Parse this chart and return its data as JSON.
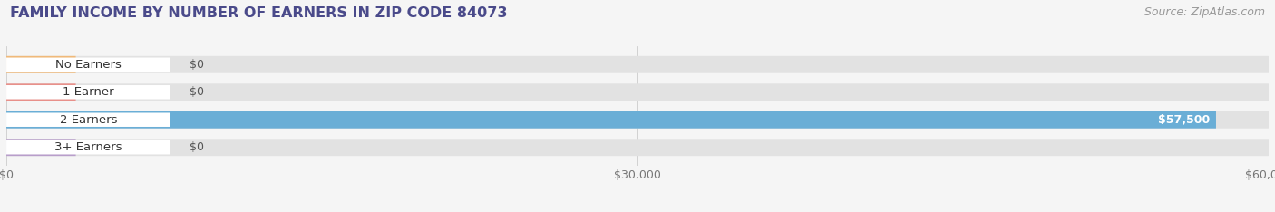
{
  "title": "FAMILY INCOME BY NUMBER OF EARNERS IN ZIP CODE 84073",
  "source": "Source: ZipAtlas.com",
  "categories": [
    "No Earners",
    "1 Earner",
    "2 Earners",
    "3+ Earners"
  ],
  "values": [
    0,
    0,
    57500,
    0
  ],
  "bar_colors": [
    "#f0b97a",
    "#e8908a",
    "#6aaed6",
    "#b89eca"
  ],
  "xlim": [
    0,
    60000
  ],
  "xticks": [
    0,
    30000,
    60000
  ],
  "xtick_labels": [
    "$0",
    "$30,000",
    "$60,000"
  ],
  "background_color": "#f5f5f5",
  "bar_bg_color": "#e2e2e2",
  "value_label_color_zero": "#555555",
  "value_label_color_nonzero": "#ffffff",
  "bar_height": 0.62,
  "figsize": [
    14.06,
    2.34
  ],
  "dpi": 100,
  "title_color": "#4a4a8a",
  "title_fontsize": 11.5,
  "source_color": "#999999",
  "source_fontsize": 9
}
